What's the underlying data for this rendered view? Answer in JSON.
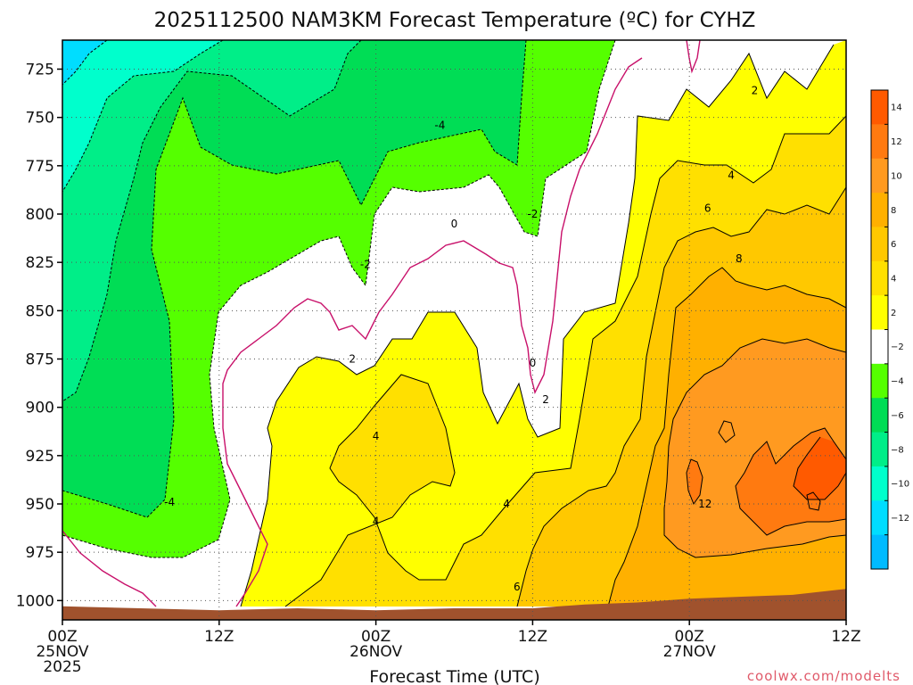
{
  "chart_data": {
    "type": "heatmap",
    "title": "2025112500 NAM3KM Forecast Temperature (ºC) for CYHZ",
    "xlabel": "Forecast Time (UTC)",
    "ylabel": "",
    "credit": "coolwx.com/modelts",
    "x_ticks": [
      {
        "hour": 0,
        "lines": [
          "00Z",
          "25NOV",
          "2025"
        ]
      },
      {
        "hour": 12,
        "lines": [
          "12Z"
        ]
      },
      {
        "hour": 24,
        "lines": [
          "00Z",
          "26NOV"
        ]
      },
      {
        "hour": 36,
        "lines": [
          "12Z"
        ]
      },
      {
        "hour": 48,
        "lines": [
          "00Z",
          "27NOV"
        ]
      },
      {
        "hour": 60,
        "lines": [
          "12Z"
        ]
      }
    ],
    "xlim": [
      0,
      60
    ],
    "y_ticks": [
      725,
      750,
      775,
      800,
      825,
      850,
      875,
      900,
      925,
      950,
      975,
      1000
    ],
    "ylim": [
      1010,
      710
    ],
    "y_scale": "pressure (hPa), inverted",
    "grid": true,
    "colorbar": {
      "labels": [
        "14",
        "12",
        "10",
        "8",
        "6",
        "4",
        "2",
        "−2",
        "−4",
        "−6",
        "−8",
        "−10",
        "−12"
      ],
      "colors": [
        "#ff5a00",
        "#ff7a10",
        "#ff9a20",
        "#ffb000",
        "#ffc800",
        "#ffe000",
        "#ffff00",
        "#ffffff",
        "#55ff00",
        "#00dd55",
        "#00ee88",
        "#00ffcc",
        "#00ddff",
        "#00bbff"
      ],
      "placement": "right"
    },
    "contour_labels": [
      {
        "text": "2",
        "hour": 53.0,
        "p": 736
      },
      {
        "text": "4",
        "hour": 51.2,
        "p": 780
      },
      {
        "text": "6",
        "hour": 49.4,
        "p": 797
      },
      {
        "text": "8",
        "hour": 51.8,
        "p": 823
      },
      {
        "text": "12",
        "hour": 49.2,
        "p": 950
      },
      {
        "text": "-4",
        "hour": 28.9,
        "p": 754
      },
      {
        "text": "-2",
        "hour": 23.2,
        "p": 826
      },
      {
        "text": "0",
        "hour": 30.0,
        "p": 805
      },
      {
        "text": "-2",
        "hour": 36.0,
        "p": 800
      },
      {
        "text": "2",
        "hour": 22.2,
        "p": 875
      },
      {
        "text": "0",
        "hour": 36.0,
        "p": 877
      },
      {
        "text": "2",
        "hour": 37.0,
        "p": 896
      },
      {
        "text": "4",
        "hour": 24.0,
        "p": 915
      },
      {
        "text": "4",
        "hour": 24.0,
        "p": 959
      },
      {
        "text": "4",
        "hour": 34.0,
        "p": 950
      },
      {
        "text": "6",
        "hour": 34.8,
        "p": 993
      },
      {
        "text": "-4",
        "hour": 8.2,
        "p": 949
      }
    ],
    "ground_top_hpa": [
      [
        0,
        1003
      ],
      [
        6,
        1004
      ],
      [
        12,
        1005
      ],
      [
        18,
        1004
      ],
      [
        24,
        1005
      ],
      [
        30,
        1004
      ],
      [
        36,
        1004
      ],
      [
        40,
        1002
      ],
      [
        44,
        1001
      ],
      [
        48,
        999
      ],
      [
        52,
        998
      ],
      [
        56,
        997
      ],
      [
        60,
        994
      ]
    ],
    "region_fills": [
      {
        "name": "below -10",
        "color": "#00ddff"
      },
      {
        "name": "-10 to -8",
        "color": "#00ffcc"
      },
      {
        "name": "-8 to -6",
        "color": "#00ee88"
      },
      {
        "name": "-6 to -4",
        "color": "#00dd55"
      },
      {
        "name": "-4 to -2",
        "color": "#55ff00"
      },
      {
        "name": "-2 to 2",
        "color": "#ffffff"
      },
      {
        "name": "2 to 4",
        "color": "#ffff00"
      },
      {
        "name": "4 to 6",
        "color": "#ffe000"
      },
      {
        "name": "6 to 8",
        "color": "#ffc800"
      },
      {
        "name": "8 to 10",
        "color": "#ffb000"
      },
      {
        "name": "10 to 12",
        "color": "#ff9a20"
      },
      {
        "name": "12 to 14",
        "color": "#ff7a10"
      },
      {
        "name": "above 14",
        "color": "#ff5a00"
      },
      {
        "name": "ground",
        "color": "#a0522d"
      }
    ]
  }
}
